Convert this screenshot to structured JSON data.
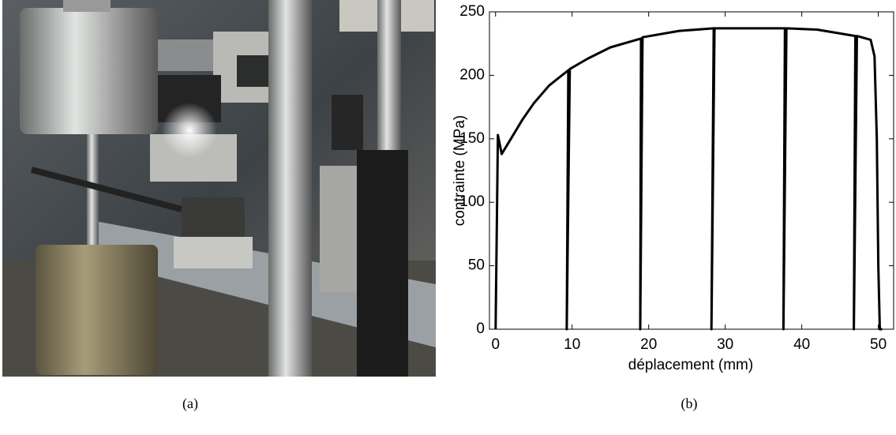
{
  "captions": [
    "(a)",
    "(b)"
  ],
  "chart_data": {
    "type": "line",
    "xlabel": "déplacement (mm)",
    "ylabel": "contrainte (MPa)",
    "xlim": [
      -0.8,
      52
    ],
    "ylim": [
      0,
      250
    ],
    "xticks": [
      0,
      10,
      20,
      30,
      40,
      50
    ],
    "yticks": [
      0,
      50,
      100,
      150,
      200,
      250
    ],
    "series": [
      {
        "color": "#000000",
        "x": [
          0,
          0.3,
          0.8,
          2,
          3.5,
          5,
          7,
          9.5,
          9.3,
          9.7,
          12,
          15,
          19,
          18.9,
          19.2,
          24,
          28.5,
          28.2,
          28.6,
          33,
          37.8,
          37.6,
          38,
          42,
          47,
          46.8,
          47.2,
          49,
          49.5,
          49.8,
          50,
          50.2,
          50.5
        ],
        "values": [
          0,
          153,
          138,
          150,
          165,
          178,
          192,
          204,
          0,
          205,
          213,
          222,
          229,
          0,
          230,
          235,
          237,
          0,
          237,
          237,
          237,
          0,
          237,
          236,
          231,
          0,
          231,
          228,
          215,
          150,
          50,
          0,
          0
        ]
      }
    ]
  }
}
